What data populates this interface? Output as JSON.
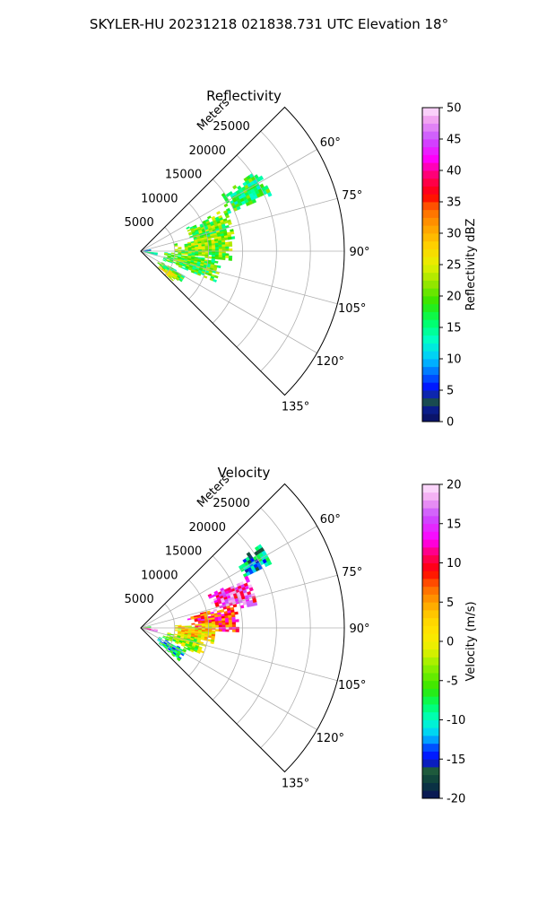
{
  "figure": {
    "title": "SKYLER-HU  20231218  021838.731 UTC Elevation 18°"
  },
  "chart_data": [
    {
      "type": "heatmap",
      "subtype": "polar-sector (PPI)",
      "title": "Reflectivity",
      "radial_label": "Meters",
      "radial_ticks": [
        5000,
        10000,
        15000,
        20000,
        25000
      ],
      "radial_range": [
        0,
        30000
      ],
      "angular_ticks": [
        "60°",
        "75°",
        "90°",
        "105°",
        "120°",
        "135°"
      ],
      "angular_range_deg": [
        45,
        135
      ],
      "grid": true,
      "colorbar": {
        "label": "Reflectivity dBZ",
        "range": [
          0,
          50
        ],
        "ticks": [
          0,
          5,
          10,
          15,
          20,
          25,
          30,
          35,
          40,
          45,
          50
        ]
      },
      "echo_regions": [
        {
          "az": [
            55,
            66
          ],
          "r": [
            14000,
            21000
          ],
          "value": 17
        },
        {
          "az": [
            63,
            82
          ],
          "r": [
            7000,
            14000
          ],
          "value": 20
        },
        {
          "az": [
            78,
            96
          ],
          "r": [
            5000,
            13500
          ],
          "value": 21
        },
        {
          "az": [
            93,
            112
          ],
          "r": [
            3500,
            12000
          ],
          "value": 19
        },
        {
          "az": [
            118,
            128
          ],
          "r": [
            3000,
            7500
          ],
          "value": 18
        },
        {
          "az": [
            124,
            132
          ],
          "r": [
            3500,
            6500
          ],
          "value": 25
        },
        {
          "az": [
            94,
            105
          ],
          "r": [
            0,
            2500
          ],
          "value": 13
        },
        {
          "az": [
            80,
            88
          ],
          "r": [
            0,
            1500
          ],
          "value": 8
        }
      ]
    },
    {
      "type": "heatmap",
      "subtype": "polar-sector (PPI)",
      "title": "Velocity",
      "radial_label": "Meters",
      "radial_ticks": [
        5000,
        10000,
        15000,
        20000,
        25000
      ],
      "radial_range": [
        0,
        30000
      ],
      "angular_ticks": [
        "60°",
        "75°",
        "90°",
        "105°",
        "120°",
        "135°"
      ],
      "angular_range_deg": [
        45,
        135
      ],
      "grid": true,
      "colorbar": {
        "label": "Velocity (m/s)",
        "range": [
          -20,
          20
        ],
        "ticks": [
          -20,
          -15,
          -10,
          -5,
          0,
          5,
          10,
          15,
          20
        ]
      },
      "echo_regions": [
        {
          "az": [
            55,
            64
          ],
          "r": [
            17000,
            21500
          ],
          "value": -12
        },
        {
          "az": [
            64,
            78
          ],
          "r": [
            11000,
            17500
          ],
          "value": 14
        },
        {
          "az": [
            76,
            92
          ],
          "r": [
            7000,
            14500
          ],
          "value": 9
        },
        {
          "az": [
            86,
            102
          ],
          "r": [
            5000,
            11000
          ],
          "value": 2
        },
        {
          "az": [
            100,
            114
          ],
          "r": [
            3500,
            10000
          ],
          "value": -3
        },
        {
          "az": [
            116,
            130
          ],
          "r": [
            3000,
            7500
          ],
          "value": -10
        },
        {
          "az": [
            95,
            104
          ],
          "r": [
            0,
            2500
          ],
          "value": 14
        },
        {
          "az": [
            80,
            90
          ],
          "r": [
            0,
            1500
          ],
          "value": -6
        }
      ]
    }
  ]
}
